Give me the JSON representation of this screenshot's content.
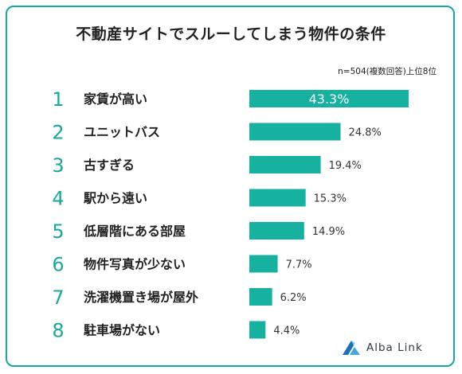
{
  "title": "不動産サイトでスルーしてしまう物件の条件",
  "note": "n=504(複数回答)上位8位",
  "logo": {
    "text": "Alba Link",
    "icon": "alba-link-logo-icon"
  },
  "colors": {
    "bar": "#17b1a0",
    "rank": "#19a99a",
    "frame": "#17a999",
    "text": "#222222"
  },
  "chart_data": {
    "type": "bar",
    "orientation": "horizontal",
    "title": "不動産サイトでスルーしてしまう物件の条件",
    "ranks": [
      "1",
      "2",
      "3",
      "4",
      "5",
      "6",
      "7",
      "8"
    ],
    "categories": [
      "家賃が高い",
      "ユニットバス",
      "古すぎる",
      "駅から遠い",
      "低層階にある部屋",
      "物件写真が少ない",
      "洗濯機置き場が屋外",
      "駐車場がない"
    ],
    "values": [
      43.3,
      24.8,
      19.4,
      15.3,
      14.9,
      7.7,
      6.2,
      4.4
    ],
    "value_labels": [
      "43.3%",
      "24.8%",
      "19.4%",
      "15.3%",
      "14.9%",
      "7.7%",
      "6.2%",
      "4.4%"
    ],
    "unit": "%",
    "xlim": [
      0,
      43.3
    ],
    "grid": false,
    "legend": "none"
  }
}
